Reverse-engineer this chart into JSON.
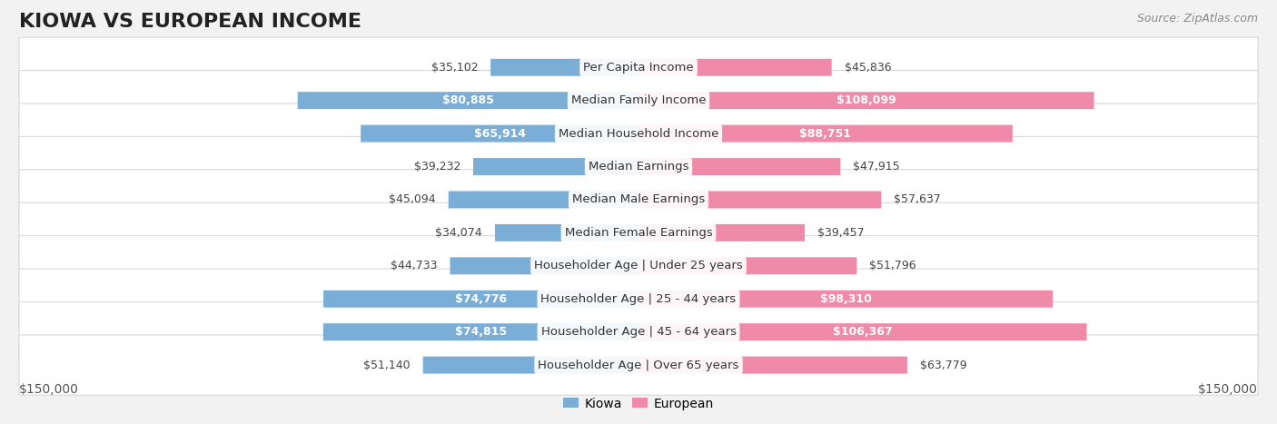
{
  "title": "KIOWA VS EUROPEAN INCOME",
  "source": "Source: ZipAtlas.com",
  "categories": [
    "Per Capita Income",
    "Median Family Income",
    "Median Household Income",
    "Median Earnings",
    "Median Male Earnings",
    "Median Female Earnings",
    "Householder Age | Under 25 years",
    "Householder Age | 25 - 44 years",
    "Householder Age | 45 - 64 years",
    "Householder Age | Over 65 years"
  ],
  "kiowa_values": [
    35102,
    80885,
    65914,
    39232,
    45094,
    34074,
    44733,
    74776,
    74815,
    51140
  ],
  "european_values": [
    45836,
    108099,
    88751,
    47915,
    57637,
    39457,
    51796,
    98310,
    106367,
    63779
  ],
  "kiowa_color": "#7aaed6",
  "european_color": "#f08aaa",
  "xlim": 150000,
  "background_color": "#f2f2f2",
  "row_bg_color": "#ffffff",
  "row_border_color": "#d8d8d8",
  "title_fontsize": 16,
  "label_fontsize": 9.5,
  "value_fontsize": 9,
  "legend_fontsize": 10,
  "source_fontsize": 9,
  "kiowa_white_threshold": 60000,
  "european_white_threshold": 80000
}
